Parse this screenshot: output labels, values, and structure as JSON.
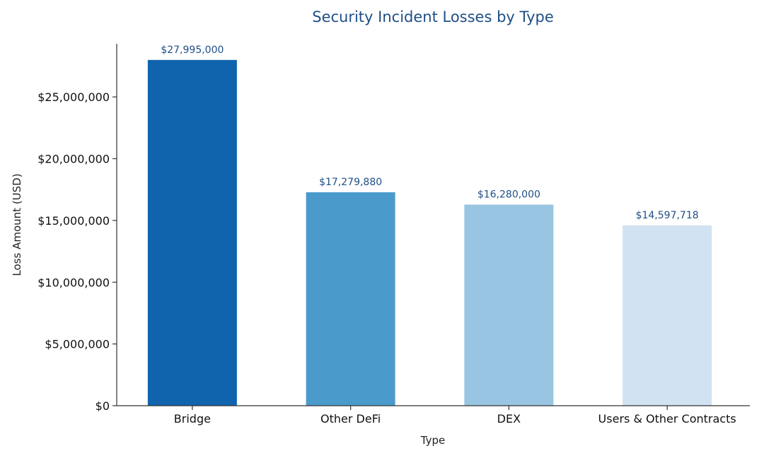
{
  "chart_data": {
    "type": "bar",
    "title": "Security Incident Losses by Type",
    "xlabel": "Type",
    "ylabel": "Loss Amount (USD)",
    "categories": [
      "Bridge",
      "Other DeFi",
      "DEX",
      "Users & Other Contracts"
    ],
    "values": [
      27995000,
      17279880,
      16280000,
      14597718
    ],
    "data_labels": [
      "$27,995,000",
      "$17,279,880",
      "$16,280,000",
      "$14,597,718"
    ],
    "bar_colors": [
      "#1064ae",
      "#4a9bcc",
      "#98c5e2",
      "#d1e2f2"
    ],
    "ylim": [
      0,
      29300000
    ],
    "yticks": [
      0,
      5000000,
      10000000,
      15000000,
      20000000,
      25000000
    ],
    "ytick_labels": [
      "$0",
      "$5,000,000",
      "$10,000,000",
      "$15,000,000",
      "$20,000,000",
      "$25,000,000"
    ],
    "grid": false,
    "legend": "none",
    "title_color": "#1f4f86",
    "label_color": "#1f4f86"
  }
}
